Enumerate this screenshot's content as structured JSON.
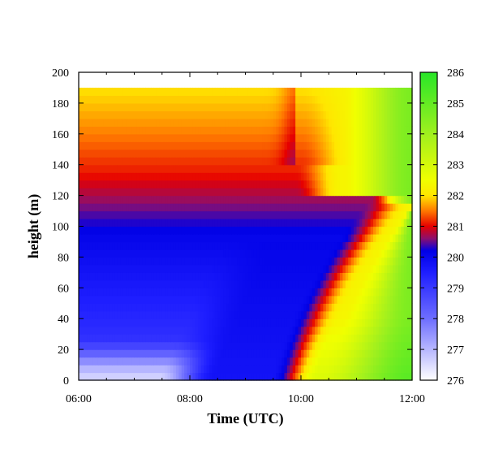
{
  "chart_data": {
    "type": "heatmap",
    "title": "",
    "xlabel": "Time (UTC)",
    "ylabel": "height (m)",
    "x_ticks": [
      "06:00",
      "08:00",
      "10:00",
      "12:00"
    ],
    "x_range_hours": [
      6,
      12
    ],
    "y_ticks": [
      0,
      20,
      40,
      60,
      80,
      100,
      120,
      140,
      160,
      180,
      200
    ],
    "ylim": [
      0,
      200
    ],
    "data_top_height": 190,
    "layer_height": 5,
    "colorbar": {
      "min": 276,
      "max": 286,
      "ticks": [
        276,
        277,
        278,
        279,
        280,
        281,
        282,
        283,
        284,
        285,
        286
      ],
      "colors": [
        {
          "value": 276,
          "color": "#ffffff"
        },
        {
          "value": 278,
          "color": "#6e6eff"
        },
        {
          "value": 279.5,
          "color": "#1e1eff"
        },
        {
          "value": 280.2,
          "color": "#0000e6"
        },
        {
          "value": 280.6,
          "color": "#8c0f6e"
        },
        {
          "value": 281.0,
          "color": "#e60000"
        },
        {
          "value": 281.5,
          "color": "#ff7800"
        },
        {
          "value": 282.0,
          "color": "#ffe600"
        },
        {
          "value": 282.5,
          "color": "#f0ff00"
        },
        {
          "value": 284.0,
          "color": "#a0f01e"
        },
        {
          "value": 286.0,
          "color": "#28e628"
        }
      ]
    }
  }
}
